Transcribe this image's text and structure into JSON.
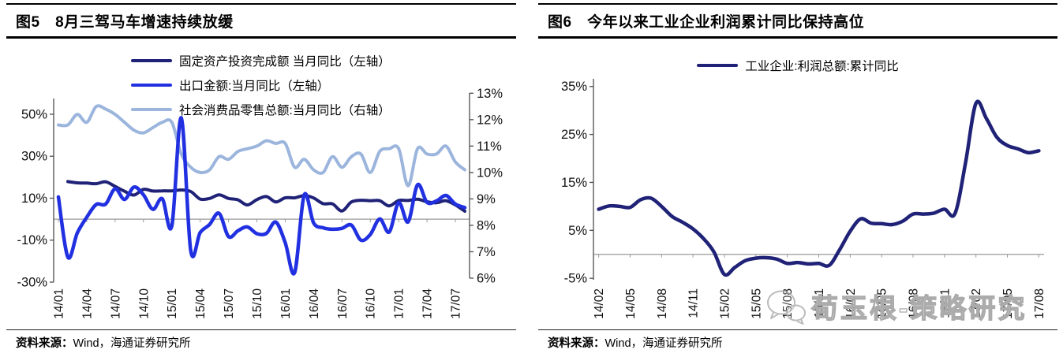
{
  "figures": [
    {
      "title": "图5　8月三驾马车增速持续放缓",
      "source_label": "资料来源：",
      "source": "Wind，海通证券研究所",
      "legend": [
        {
          "label": "固定资产投资完成额 当月同比（左轴）",
          "color": "#1f2276"
        },
        {
          "label": "出口金额:当月同比（左轴）",
          "color": "#2130e0"
        },
        {
          "label": "社会消费品零售总额:当月同比（右轴）",
          "color": "#9cb5dd"
        }
      ]
    },
    {
      "title": "图6　今年以来工业企业利润累计同比保持高位",
      "source_label": "资料来源：",
      "source": "Wind，海通证券研究所",
      "legend": [
        {
          "label": "工业企业:利润总额:累计同比",
          "color": "#1f2276"
        }
      ]
    }
  ],
  "watermark": {
    "text": "荀玉根-策略研究",
    "icon": "wechat-icon"
  },
  "colors": {
    "navy": "#1f2276",
    "bright_blue": "#2130e0",
    "light_blue": "#9cb5dd",
    "axis": "#4d4d4d",
    "zero_line": "#9a9a9a",
    "tick_text": "#111111"
  },
  "chart_data": [
    {
      "type": "line",
      "title": "8月三驾马车增速持续放缓",
      "categories": [
        "14/01",
        "14/02",
        "14/03",
        "14/04",
        "14/05",
        "14/06",
        "14/07",
        "14/08",
        "14/09",
        "14/10",
        "14/11",
        "14/12",
        "15/01",
        "15/02",
        "15/03",
        "15/04",
        "15/05",
        "15/06",
        "15/07",
        "15/08",
        "15/09",
        "15/10",
        "15/11",
        "15/12",
        "16/01",
        "16/02",
        "16/03",
        "16/04",
        "16/05",
        "16/06",
        "16/07",
        "16/08",
        "16/09",
        "16/10",
        "16/11",
        "16/12",
        "17/01",
        "17/02",
        "17/03",
        "17/04",
        "17/05",
        "17/06",
        "17/07",
        "17/08"
      ],
      "x_tick_labels": [
        "14/01",
        "14/04",
        "14/07",
        "14/10",
        "15/01",
        "15/04",
        "15/07",
        "15/10",
        "16/01",
        "16/04",
        "16/07",
        "16/10",
        "17/01",
        "17/04",
        "17/07"
      ],
      "series": [
        {
          "name": "固定资产投资完成额 当月同比（左轴）",
          "axis": "left",
          "color": "#1f2276",
          "values": [
            null,
            17.9,
            17.3,
            17.2,
            16.9,
            17.8,
            15.6,
            13.3,
            11.5,
            14.2,
            13.4,
            13.5,
            13.5,
            13.9,
            13.2,
            9.6,
            9.9,
            11.6,
            9.9,
            9.2,
            6.8,
            9.3,
            10.8,
            8.2,
            10.2,
            10.2,
            11.2,
            10.1,
            7.4,
            7.3,
            3.9,
            8.2,
            9.0,
            8.8,
            8.8,
            6.3,
            8.9,
            8.9,
            9.5,
            8.3,
            7.8,
            8.8,
            6.8,
            3.8
          ]
        },
        {
          "name": "出口金额:当月同比（左轴）",
          "axis": "left",
          "color": "#2130e0",
          "values": [
            10.6,
            -18.1,
            -6.6,
            0.9,
            7.0,
            7.2,
            14.5,
            9.4,
            15.3,
            11.6,
            4.7,
            9.7,
            -3.3,
            48.3,
            -15.0,
            -6.4,
            -2.5,
            2.8,
            -8.3,
            -5.5,
            -3.7,
            -6.9,
            -6.8,
            -1.4,
            -11.2,
            -25.4,
            11.5,
            -1.8,
            -4.1,
            -4.8,
            -4.4,
            -2.8,
            -10.0,
            -7.3,
            0.1,
            -6.1,
            7.9,
            -1.3,
            16.4,
            8.0,
            8.7,
            11.3,
            7.2,
            5.5
          ]
        },
        {
          "name": "社会消费品零售总额:当月同比（右轴）",
          "axis": "right",
          "color": "#9cb5dd",
          "values": [
            11.8,
            11.8,
            12.2,
            11.9,
            12.5,
            12.4,
            12.2,
            11.9,
            11.6,
            11.5,
            11.7,
            11.9,
            11.9,
            10.7,
            10.2,
            10.0,
            10.1,
            10.6,
            10.5,
            10.8,
            10.9,
            11.0,
            11.2,
            11.1,
            11.1,
            10.2,
            10.5,
            10.1,
            10.0,
            10.6,
            10.2,
            10.6,
            10.7,
            10.0,
            10.8,
            10.9,
            10.9,
            9.5,
            10.9,
            10.7,
            10.7,
            11.0,
            10.4,
            10.1
          ]
        }
      ],
      "left_axis": {
        "ticks": [
          "50%",
          "30%",
          "10%",
          "-10%",
          "-30%"
        ],
        "tick_values": [
          50,
          30,
          10,
          -10,
          -30
        ],
        "range": [
          -30,
          57.5
        ]
      },
      "right_axis": {
        "ticks": [
          "13%",
          "12%",
          "11%",
          "10%",
          "9%",
          "8%",
          "7%",
          "6%"
        ],
        "tick_values": [
          13,
          12,
          11,
          10,
          9,
          8,
          7,
          6
        ],
        "range": [
          5.85,
          12.8
        ]
      },
      "grid": false,
      "legend_position": "top-left"
    },
    {
      "type": "line",
      "title": "今年以来工业企业利润累计同比保持高位",
      "categories": [
        "14/02",
        "14/03",
        "14/04",
        "14/05",
        "14/06",
        "14/07",
        "14/08",
        "14/09",
        "14/10",
        "14/11",
        "14/12",
        "15/01",
        "15/02",
        "15/03",
        "15/04",
        "15/05",
        "15/06",
        "15/07",
        "15/08",
        "15/09",
        "15/10",
        "15/11",
        "15/12",
        "16/01",
        "16/02",
        "16/03",
        "16/04",
        "16/05",
        "16/06",
        "16/07",
        "16/08",
        "16/09",
        "16/10",
        "16/11",
        "16/12",
        "17/01",
        "17/02",
        "17/03",
        "17/04",
        "17/05",
        "17/06",
        "17/07",
        "17/08"
      ],
      "x_tick_labels": [
        "14/02",
        "14/05",
        "14/08",
        "14/11",
        "15/02",
        "15/05",
        "15/08",
        "15/11",
        "16/02",
        "16/05",
        "16/08",
        "16/11",
        "17/02",
        "17/05",
        "17/08"
      ],
      "series": [
        {
          "name": "工业企业:利润总额:累计同比",
          "axis": "left",
          "color": "#1f2276",
          "values": [
            9.4,
            10.1,
            10.0,
            9.8,
            11.4,
            11.7,
            10.0,
            7.9,
            6.7,
            5.3,
            3.3,
            0.5,
            -4.2,
            -2.7,
            -1.3,
            -0.8,
            -0.7,
            -1.0,
            -1.9,
            -1.7,
            -2.0,
            -1.9,
            -2.3,
            1.0,
            4.8,
            7.4,
            6.5,
            6.4,
            6.2,
            6.9,
            8.4,
            8.4,
            8.6,
            9.4,
            8.5,
            19.0,
            31.5,
            28.3,
            24.4,
            22.7,
            22.0,
            21.2,
            21.6
          ]
        }
      ],
      "left_axis": {
        "ticks": [
          "35%",
          "25%",
          "15%",
          "5%",
          "-5%"
        ],
        "tick_values": [
          35,
          25,
          15,
          5,
          -5
        ],
        "range": [
          -5.3,
          36.6
        ]
      },
      "grid": false,
      "legend_position": "top-center"
    }
  ]
}
